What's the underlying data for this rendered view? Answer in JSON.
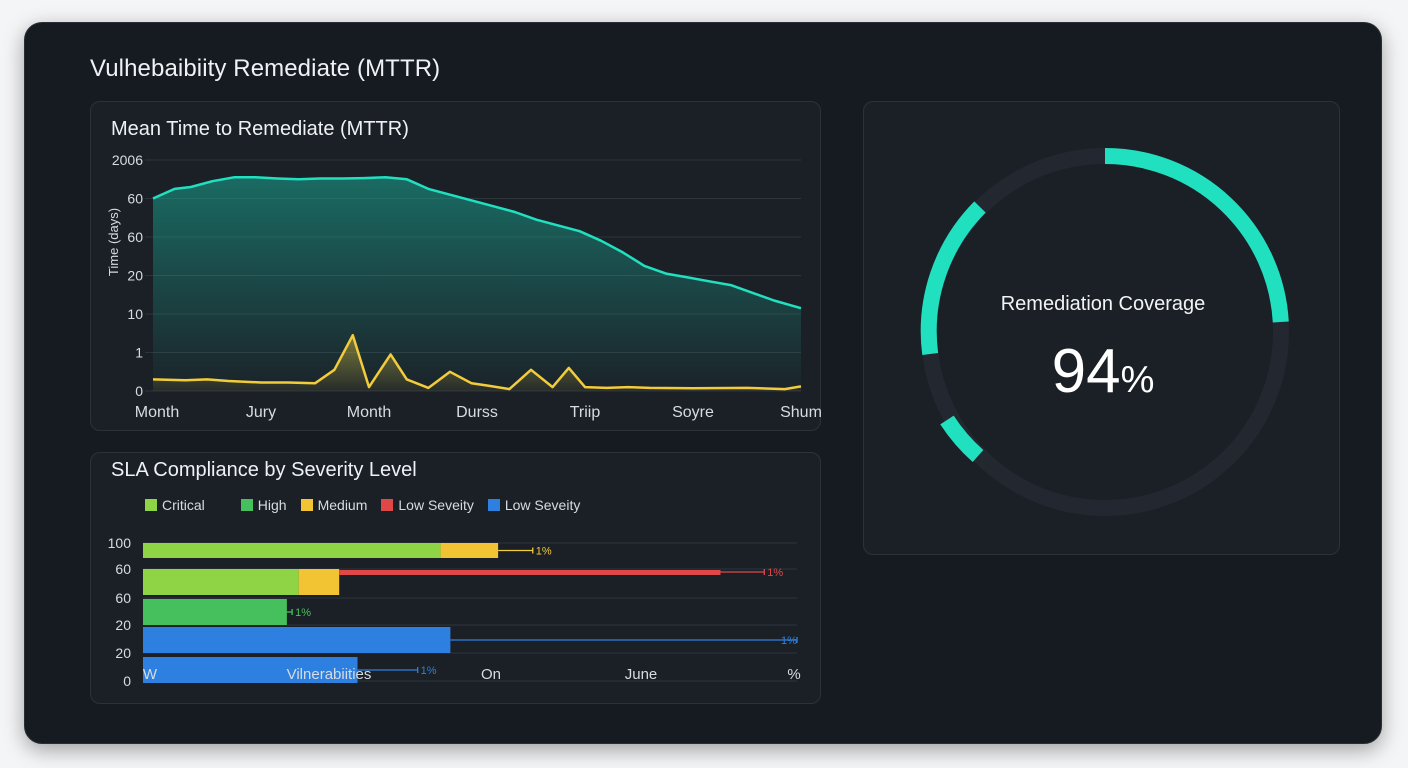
{
  "dashboard": {
    "title": "Vulhebaibiity Remediate (MTTR)"
  },
  "colors": {
    "background": "#161b22",
    "panel": "#1b2027",
    "teal": "#20e0c0",
    "yellow": "#f2cc3a",
    "critical": "#8fd444",
    "high": "#46c05c",
    "medium": "#f2c434",
    "low_red": "#e04848",
    "low_blue": "#2d7fe0"
  },
  "chart_data": [
    {
      "type": "area",
      "title": "Mean Time to Remediate (MTTR)",
      "ylabel": "Time (days)",
      "xlabel": "",
      "y_tick_labels": [
        "2006",
        "60",
        "60",
        "20",
        "10",
        "1",
        "0"
      ],
      "x_tick_labels": [
        "Month",
        "Jury",
        "Month",
        "Durss",
        "Triip",
        "Soyre",
        "Shum"
      ],
      "grid": true,
      "y_levels": [
        7,
        6,
        5,
        4,
        3,
        2,
        1
      ],
      "series": [
        {
          "color": "#20e0c0",
          "x": [
            0,
            0.2,
            0.35,
            0.55,
            0.75,
            0.95,
            1.15,
            1.35,
            1.55,
            1.75,
            1.95,
            2.15,
            2.35,
            2.55,
            2.75,
            2.95,
            3.15,
            3.35,
            3.55,
            3.75,
            3.95,
            4.15,
            4.35,
            4.55,
            4.75,
            4.95,
            5.15,
            5.35,
            5.55,
            5.75,
            6.0
          ],
          "y": [
            6.0,
            6.25,
            6.3,
            6.45,
            6.55,
            6.55,
            6.52,
            6.5,
            6.52,
            6.52,
            6.53,
            6.55,
            6.5,
            6.25,
            6.1,
            5.95,
            5.8,
            5.65,
            5.45,
            5.3,
            5.15,
            4.9,
            4.6,
            4.25,
            4.05,
            3.95,
            3.85,
            3.75,
            3.55,
            3.35,
            3.15
          ]
        },
        {
          "color": "#f2cc3a",
          "x": [
            0,
            0.3,
            0.5,
            0.7,
            1.0,
            1.25,
            1.5,
            1.68,
            1.85,
            2.0,
            2.2,
            2.35,
            2.55,
            2.75,
            2.95,
            3.1,
            3.3,
            3.5,
            3.7,
            3.85,
            4.0,
            4.2,
            4.4,
            4.6,
            5.0,
            5.5,
            5.85,
            6.0
          ],
          "y": [
            1.3,
            1.28,
            1.3,
            1.26,
            1.22,
            1.22,
            1.2,
            1.55,
            2.45,
            1.1,
            1.95,
            1.3,
            1.08,
            1.5,
            1.2,
            1.14,
            1.05,
            1.55,
            1.1,
            1.6,
            1.1,
            1.08,
            1.1,
            1.08,
            1.07,
            1.08,
            1.05,
            1.12
          ]
        }
      ]
    },
    {
      "type": "bar",
      "orientation": "horizontal",
      "title": "SLA Compliance by Severity Level",
      "legend": [
        "Critical",
        "High",
        "Medium",
        "Low Seveity",
        "Low Seveity"
      ],
      "legend_colors": [
        "#8fd444",
        "#46c05c",
        "#f2c434",
        "#e04848",
        "#2d7fe0"
      ],
      "y_tick_labels": [
        "100",
        "60",
        "60",
        "20",
        "20",
        "0"
      ],
      "x_tick_labels": [
        "W",
        "Vilnerabiities",
        "On",
        "June",
        "%"
      ],
      "grid": true,
      "rows": [
        {
          "segments": [
            {
              "color": "#8fd444",
              "value": 45.5
            },
            {
              "color": "#f2c434",
              "value": 8.8
            }
          ],
          "whisker_to": 59.6,
          "whisker_color": "#f2cc3a",
          "label": "1%"
        },
        {
          "segments": [
            {
              "color": "#8fd444",
              "value": 23.8
            },
            {
              "color": "#f2c434",
              "value": 6.2
            },
            {
              "color": "#e04848",
              "value": 58.3,
              "thin": true
            }
          ],
          "whisker_to": 95.0,
          "whisker_color": "#e04848",
          "label": "1%"
        },
        {
          "segments": [
            {
              "color": "#46c05c",
              "value": 22.0
            }
          ],
          "whisker_to": 22.8,
          "whisker_color": "#46c05c",
          "label": "1%"
        },
        {
          "segments": [
            {
              "color": "#2d7fe0",
              "value": 47.0
            }
          ],
          "whisker_to": 100.0,
          "whisker_color": "#2d7fe0",
          "label": "1%"
        },
        {
          "segments": [
            {
              "color": "#2d7fe0",
              "value": 32.8
            }
          ],
          "whisker_to": 42.0,
          "whisker_color": "#2d7fe0",
          "label": "1%"
        }
      ],
      "xlim": [
        0,
        100
      ]
    }
  ],
  "gauge": {
    "label": "Remediation Coverage",
    "value": "94",
    "unit": "%"
  }
}
